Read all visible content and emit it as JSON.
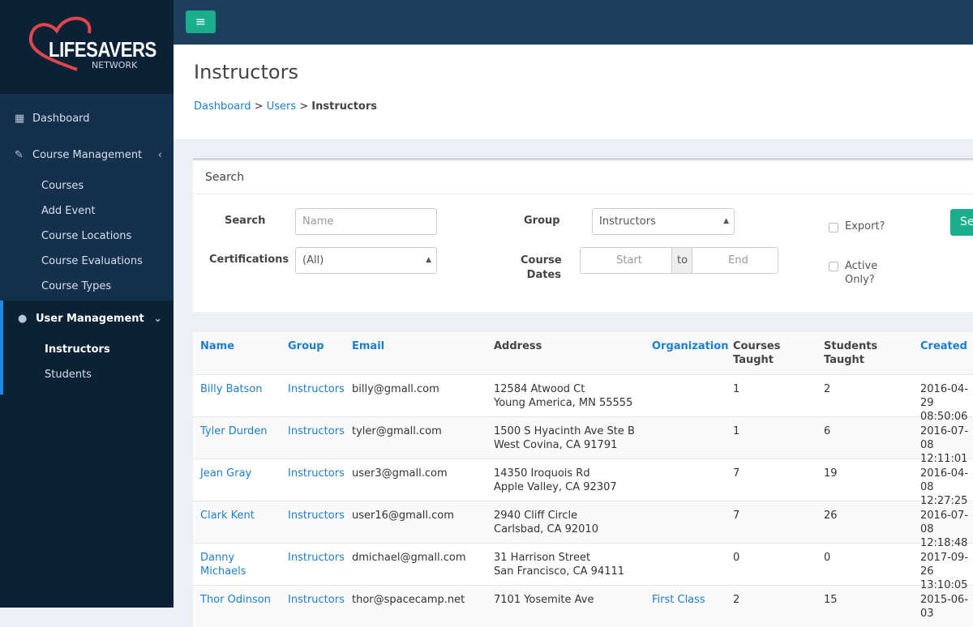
{
  "brand": {
    "name": "LIFESAVERS",
    "sub": "NETWORK",
    "heart_color": "#e0474c"
  },
  "sidebar": {
    "dashboard": "Dashboard",
    "course_mgmt": "Course Management",
    "course_items": [
      "Courses",
      "Add Event",
      "Course Locations",
      "Course Evaluations",
      "Course Types"
    ],
    "user_mgmt": "User Management",
    "user_items": [
      "Instructors",
      "Students"
    ]
  },
  "page": {
    "title": "Instructors",
    "breadcrumb": [
      "Dashboard",
      "Users",
      "Instructors"
    ]
  },
  "search": {
    "panel_title": "Search",
    "search_label": "Search",
    "search_placeholder": "Name",
    "group_label": "Group",
    "group_value": "Instructors",
    "cert_label": "Certifications",
    "cert_value": "(All)",
    "dates_label": "Course Dates",
    "start_placeholder": "Start",
    "to": "to",
    "end_placeholder": "End",
    "export": "Export?",
    "active": "Active Only?",
    "button": "Search"
  },
  "table": {
    "headers": [
      "Name",
      "Group",
      "Email",
      "Address",
      "Organization",
      "Courses Taught",
      "Students Taught",
      "Created"
    ],
    "rows": [
      [
        "Billy Batson",
        "Instructors",
        "billy@gmall.com",
        "12584 Atwood Ct",
        "Young America, MN 55555",
        "",
        "1",
        "2",
        "2016-04-29",
        "08:50:06"
      ],
      [
        "Tyler Durden",
        "Instructors",
        "tyler@gmall.com",
        "1500 S Hyacinth Ave Ste B",
        "West Covina, CA 91791",
        "",
        "1",
        "6",
        "2016-07-08",
        "12:11:01"
      ],
      [
        "Jean Gray",
        "Instructors",
        "user3@gmall.com",
        "14350 Iroquois Rd",
        "Apple Valley, CA 92307",
        "",
        "7",
        "19",
        "2016-04-08",
        "12:27:25"
      ],
      [
        "Clark Kent",
        "Instructors",
        "user16@gmall.com",
        "2940 Cliff Circle",
        "Carlsbad, CA 92010",
        "",
        "7",
        "26",
        "2016-07-08",
        "12:18:48"
      ],
      [
        "Danny Michaels",
        "Instructors",
        "dmichael@gmall.com",
        "31 Harrison Street",
        "San Francisco, CA 94111",
        "",
        "0",
        "0",
        "2017-09-26",
        "13:10:05"
      ],
      [
        "Thor Odinson",
        "Instructors",
        "thor@spacecamp.net",
        "7101 Yosemite Ave",
        "",
        "First Class",
        "2",
        "15",
        "2015-06-03",
        ""
      ]
    ]
  }
}
